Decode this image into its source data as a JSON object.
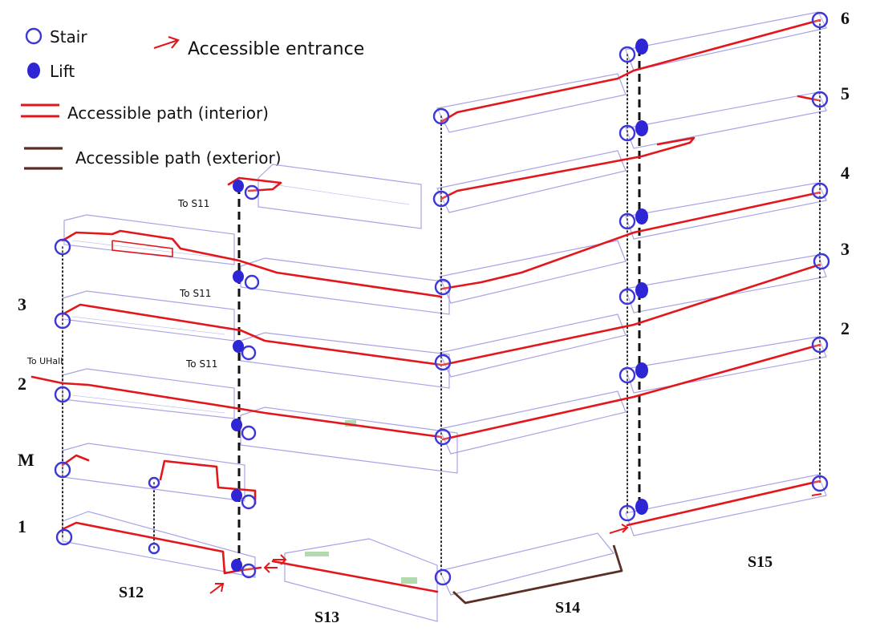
{
  "legend": {
    "stair": "Stair",
    "lift": "Lift",
    "accessible_entrance": "Accessible entrance",
    "path_interior": "Accessible path (interior)",
    "path_exterior": "Accessible path (exterior)"
  },
  "buildings": {
    "s12": "S12",
    "s13": "S13",
    "s14": "S14",
    "s15": "S15"
  },
  "left_floor_labels": {
    "f3": "3",
    "f2": "2",
    "m": "M",
    "f1": "1"
  },
  "right_floor_labels": {
    "f6": "6",
    "f5": "5",
    "f4": "4",
    "f3": "3",
    "f2": "2"
  },
  "notes": {
    "to_s11_a": "To S11",
    "to_s11_b": "To S11",
    "to_s11_c": "To S11",
    "to_uhall": "To UHall"
  },
  "colors": {
    "stair": "#3e37d8",
    "lift": "#2e25d4",
    "interior_path": "#e3171b",
    "exterior_path": "#5b2f26",
    "plan_outline": "#a9a3e6"
  }
}
